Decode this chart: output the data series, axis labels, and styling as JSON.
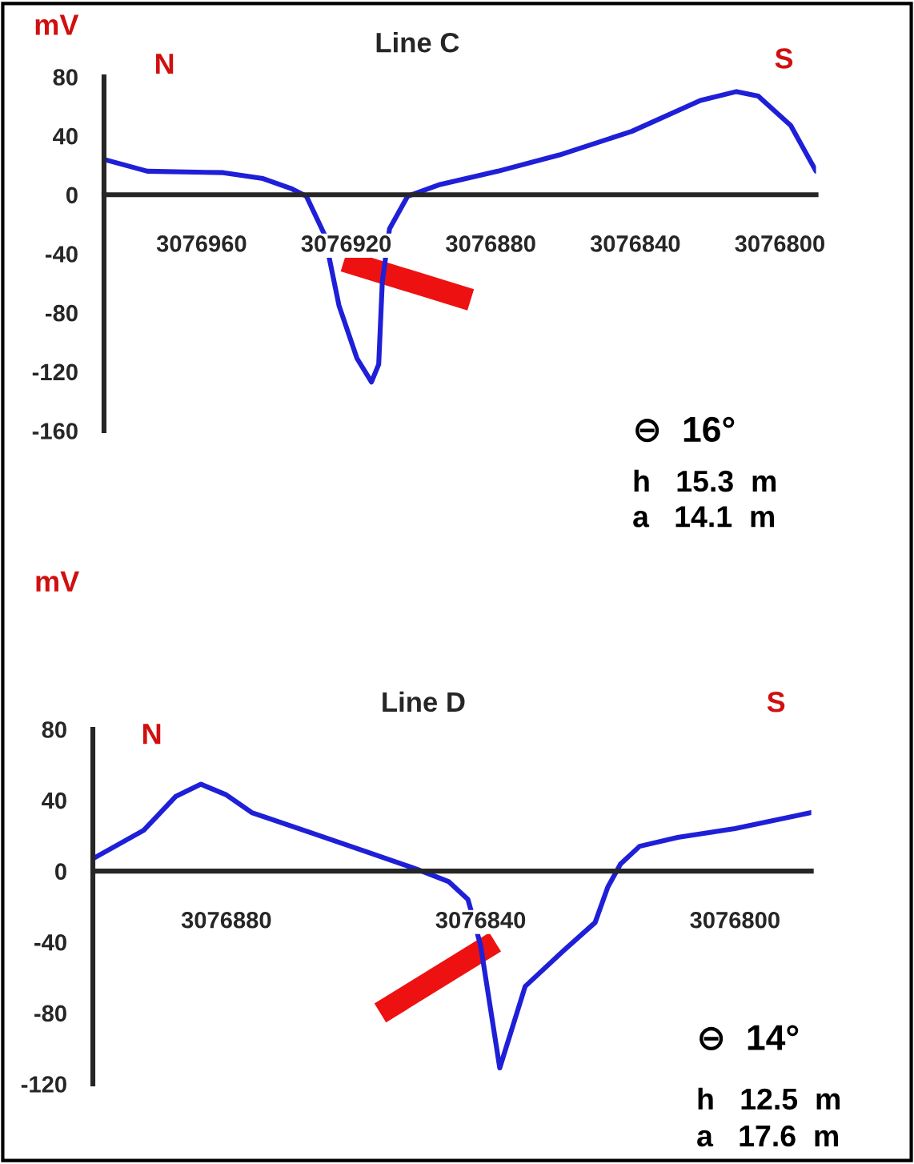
{
  "chart_data": [
    {
      "type": "line",
      "title": "Line C",
      "ylabel": "mV",
      "x": [
        3076987,
        3076975,
        3076954,
        3076943,
        3076935,
        3076931,
        3076926,
        3076922,
        3076917,
        3076913,
        3076911,
        3076910,
        3076908,
        3076903,
        3076894,
        3076878,
        3076861,
        3076841,
        3076822,
        3076812,
        3076806,
        3076797,
        3076790
      ],
      "series": [
        {
          "color": "#1f1fd8",
          "values": [
            24,
            16,
            15,
            11,
            4,
            -1,
            -27,
            -75,
            -111,
            -127,
            -115,
            -59,
            -23,
            -1,
            7,
            16,
            27,
            43,
            64,
            70,
            67,
            47,
            16
          ]
        }
      ],
      "xlim": [
        3076987,
        3076790
      ],
      "xticks": [
        3076960,
        3076920,
        3076880,
        3076840,
        3076800
      ],
      "ylim": [
        -160,
        80
      ],
      "yticks": [
        -160,
        -120,
        -80,
        -40,
        0,
        40,
        80
      ],
      "grid": false,
      "legend": false,
      "marker": "none",
      "line_style": "solid",
      "annotations": [
        "N",
        "S",
        "⊖  16°",
        "h   15.3  m",
        "a   14.1  m"
      ]
    },
    {
      "type": "line",
      "title": "Line D",
      "ylabel": "mV",
      "x": [
        3076901,
        3076893,
        3076888,
        3076884,
        3076880,
        3076876,
        3076867,
        3076858,
        3076850,
        3076845,
        3076842,
        3076840,
        3076837,
        3076833,
        3076827,
        3076822,
        3076820,
        3076818,
        3076815,
        3076809,
        3076800,
        3076788
      ],
      "series": [
        {
          "color": "#1f1fd8",
          "values": [
            7,
            23,
            42,
            49,
            43,
            33,
            22,
            11,
            1,
            -6,
            -16,
            -42,
            -111,
            -65,
            -45,
            -29,
            -9,
            4,
            14,
            19,
            24,
            33
          ]
        }
      ],
      "xlim": [
        3076901,
        3076788
      ],
      "xticks": [
        3076880,
        3076840,
        3076800
      ],
      "ylim": [
        -120,
        80
      ],
      "yticks": [
        -120,
        -80,
        -40,
        0,
        40,
        80
      ],
      "grid": false,
      "legend": false,
      "marker": "none",
      "line_style": "solid",
      "annotations": [
        "N",
        "S",
        "⊖  14°",
        "h   12.5  m",
        "a   17.6  m"
      ]
    }
  ]
}
